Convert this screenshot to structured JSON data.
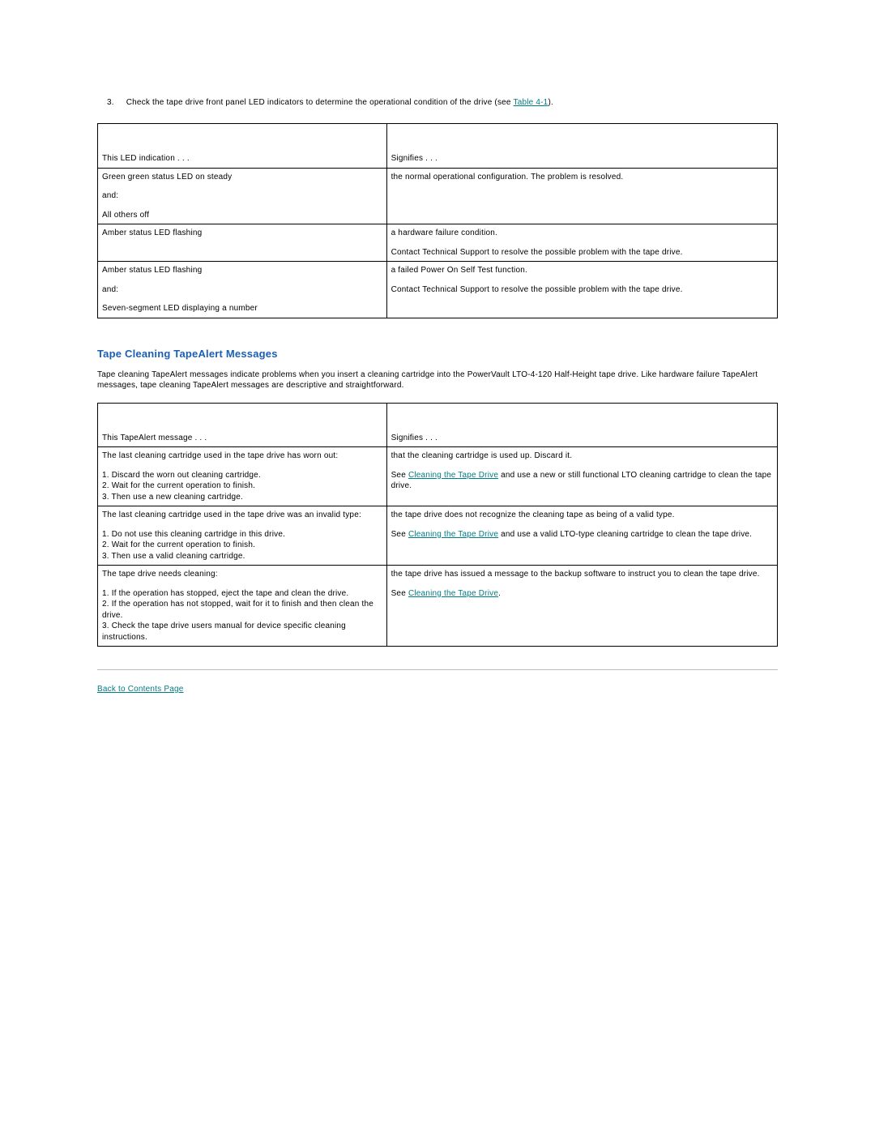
{
  "step": {
    "number": "3.",
    "text_before_link": "Check the tape drive front panel LED indicators to determine the operational condition of the drive (see ",
    "link_text": "Table 4-1",
    "text_after_link": ")."
  },
  "led_table": {
    "header_left": "This LED indication . . .",
    "header_right": "Signifies . . .",
    "rows": [
      {
        "left_lines": [
          "Green green status LED on steady",
          "",
          "and:",
          "",
          "All others off"
        ],
        "right_lines": [
          "the normal operational configuration. The problem is resolved."
        ]
      },
      {
        "left_lines": [
          "Amber status LED flashing"
        ],
        "right_lines": [
          "a hardware failure condition.",
          "",
          "Contact Technical Support to resolve the possible problem with the tape drive."
        ]
      },
      {
        "left_lines": [
          "Amber status LED flashing",
          "",
          "and:",
          "",
          "Seven-segment LED displaying a number"
        ],
        "right_lines": [
          "a failed Power On Self Test function.",
          "",
          "Contact Technical Support to resolve the possible problem with the tape drive."
        ]
      }
    ]
  },
  "section_heading": "Tape Cleaning TapeAlert Messages",
  "section_intro": "Tape cleaning TapeAlert messages indicate problems when you insert a cleaning cartridge into the PowerVault LTO-4-120 Half-Height tape drive. Like hardware failure TapeAlert messages, tape cleaning TapeAlert messages are descriptive and straightforward.",
  "tape_table": {
    "header_left": "This TapeAlert message . . .",
    "header_right": "Signifies . . .",
    "rows": [
      {
        "left_lines": [
          "The last cleaning cartridge used in the tape drive has worn out:",
          "",
          "1. Discard the worn out cleaning cartridge.",
          "2. Wait for the current operation to finish.",
          "3. Then use a new cleaning cartridge."
        ],
        "right_pre": "that the cleaning cartridge is used up. Discard it.",
        "right_gap": true,
        "right_see_prefix": "See ",
        "right_link": "Cleaning the Tape Drive",
        "right_see_suffix": " and use a new or still functional LTO cleaning cartridge to clean the tape drive."
      },
      {
        "left_lines": [
          "The last cleaning cartridge used in the tape drive was an invalid type:",
          "",
          "1. Do not use this cleaning cartridge in this drive.",
          "2. Wait for the current operation to finish.",
          "3. Then use a valid cleaning cartridge."
        ],
        "right_pre": "the tape drive does not recognize the cleaning tape as being of a valid type.",
        "right_gap": true,
        "right_see_prefix": "See ",
        "right_link": "Cleaning the Tape Drive",
        "right_see_suffix": " and use a valid LTO-type cleaning cartridge to clean the tape drive."
      },
      {
        "left_lines": [
          "The tape drive needs cleaning:",
          "",
          "1. If the operation has stopped, eject the tape and clean the drive.",
          "2. If the operation has not stopped, wait for it to finish and then clean the drive.",
          "3. Check the tape drive users manual for device specific cleaning instructions."
        ],
        "right_pre": "the tape drive has issued a message to the backup software to instruct you to clean the tape drive.",
        "right_gap": true,
        "right_see_prefix": "See ",
        "right_link": "Cleaning the Tape Drive",
        "right_see_suffix": "."
      }
    ]
  },
  "back_link": "Back to Contents Page",
  "colors": {
    "heading": "#1a5fb4",
    "link": "#007c83",
    "border": "#000000",
    "rule": "#bdbdbd"
  }
}
